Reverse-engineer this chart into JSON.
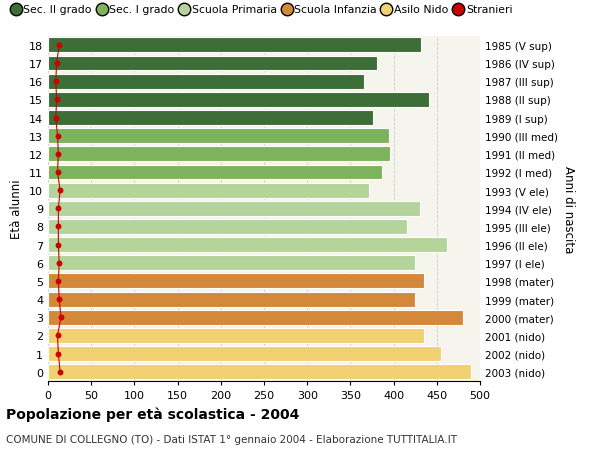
{
  "ages": [
    18,
    17,
    16,
    15,
    14,
    13,
    12,
    11,
    10,
    9,
    8,
    7,
    6,
    5,
    4,
    3,
    2,
    1,
    0
  ],
  "bar_values": [
    432,
    381,
    366,
    441,
    376,
    395,
    396,
    387,
    371,
    430,
    415,
    462,
    425,
    435,
    425,
    480,
    435,
    455,
    490
  ],
  "stranieri": [
    13,
    10,
    9,
    10,
    9,
    11,
    12,
    11,
    14,
    12,
    12,
    12,
    13,
    12,
    13,
    15,
    11,
    12,
    14
  ],
  "bar_colors": [
    "#3d6e38",
    "#3d6e38",
    "#3d6e38",
    "#3d6e38",
    "#3d6e38",
    "#7db35c",
    "#7db35c",
    "#7db35c",
    "#b5d49c",
    "#b5d49c",
    "#b5d49c",
    "#b5d49c",
    "#b5d49c",
    "#d4883a",
    "#d4883a",
    "#d4883a",
    "#f0d070",
    "#f0d070",
    "#f0d070"
  ],
  "right_labels": [
    "1985 (V sup)",
    "1986 (IV sup)",
    "1987 (III sup)",
    "1988 (II sup)",
    "1989 (I sup)",
    "1990 (III med)",
    "1991 (II med)",
    "1992 (I med)",
    "1993 (V ele)",
    "1994 (IV ele)",
    "1995 (III ele)",
    "1996 (II ele)",
    "1997 (I ele)",
    "1998 (mater)",
    "1999 (mater)",
    "2000 (mater)",
    "2001 (nido)",
    "2002 (nido)",
    "2003 (nido)"
  ],
  "legend_labels": [
    "Sec. II grado",
    "Sec. I grado",
    "Scuola Primaria",
    "Scuola Infanzia",
    "Asilo Nido",
    "Stranieri"
  ],
  "legend_colors": [
    "#3d6e38",
    "#7db35c",
    "#b5d49c",
    "#d4883a",
    "#f0d070",
    "#cc0000"
  ],
  "title": "Popolazione per età scolastica - 2004",
  "subtitle": "COMUNE DI COLLEGNO (TO) - Dati ISTAT 1° gennaio 2004 - Elaborazione TUTTITALIA.IT",
  "ylabel": "Età alunni",
  "right_ylabel": "Anni di nascita",
  "xlim": [
    0,
    500
  ],
  "xticks": [
    0,
    50,
    100,
    150,
    200,
    250,
    300,
    350,
    400,
    450,
    500
  ],
  "background_color": "#ffffff",
  "plot_bg_color": "#f5f5ee",
  "grid_color": "#cccccc",
  "stranieri_color": "#cc0000",
  "bar_height": 0.82
}
